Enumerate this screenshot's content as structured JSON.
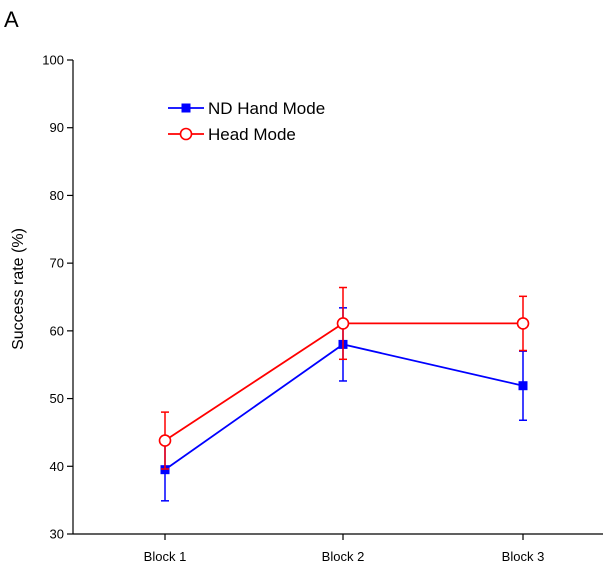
{
  "panel_label": "A",
  "chart_data": {
    "type": "line",
    "title": "",
    "xlabel": "",
    "ylabel": "Success rate (%)",
    "categories": [
      "Block 1",
      "Block 2",
      "Block 3"
    ],
    "ylim": [
      30,
      100
    ],
    "yticks": [
      30,
      40,
      50,
      60,
      70,
      80,
      90,
      100
    ],
    "grid": false,
    "legend_position": "top-left",
    "series": [
      {
        "name": "ND Hand Mode",
        "color": "#0000ff",
        "marker": "filled-square",
        "values": [
          39.5,
          58,
          51.9
        ],
        "error": [
          4.6,
          5.4,
          5.1
        ]
      },
      {
        "name": "Head Mode",
        "color": "#ff0000",
        "marker": "open-circle",
        "values": [
          43.8,
          61.1,
          61.1
        ],
        "error": [
          4.2,
          5.3,
          4
        ]
      }
    ]
  }
}
